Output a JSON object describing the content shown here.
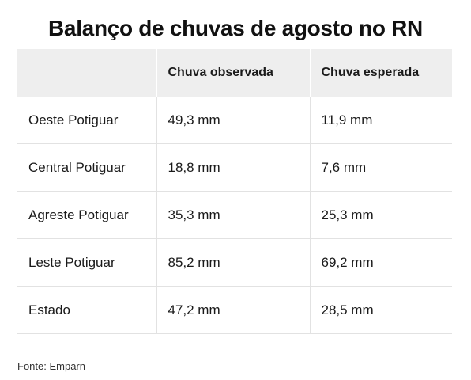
{
  "title": "Balanço de chuvas de agosto no RN",
  "table": {
    "headers": [
      "",
      "Chuva observada",
      "Chuva esperada"
    ],
    "rows": [
      [
        "Oeste Potiguar",
        "49,3 mm",
        "11,9 mm"
      ],
      [
        "Central Potiguar",
        "18,8 mm",
        "7,6 mm"
      ],
      [
        "Agreste Potiguar",
        "35,3 mm",
        "25,3 mm"
      ],
      [
        "Leste Potiguar",
        "85,2 mm",
        "69,2 mm"
      ],
      [
        "Estado",
        "47,2 mm",
        "28,5 mm"
      ]
    ]
  },
  "source": "Fonte: Emparn"
}
